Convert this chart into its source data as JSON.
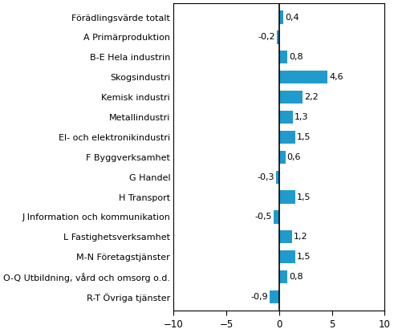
{
  "categories": [
    "Förädlingsvärde totalt",
    "A Primärproduktion",
    "B-E Hela industrin",
    "Skogsindustri",
    "Kemisk industri",
    "Metallindustri",
    "El- och elektronikindustri",
    "F Byggverksamhet",
    "G Handel",
    "H Transport",
    "J Information och kommunikation",
    "L Fastighetsverksamhet",
    "M-N Företagstjänster",
    "O-Q Utbildning, vård och omsorg o.d.",
    "R-T Övriga tjänster"
  ],
  "values": [
    0.4,
    -0.2,
    0.8,
    4.6,
    2.2,
    1.3,
    1.5,
    0.6,
    -0.3,
    1.5,
    -0.5,
    1.2,
    1.5,
    0.8,
    -0.9
  ],
  "bar_color": "#1F9BCD",
  "xlim": [
    -10,
    10
  ],
  "xticks": [
    -10,
    -5,
    0,
    5,
    10
  ],
  "bar_height": 0.65,
  "value_label_fontsize": 8,
  "category_fontsize": 8,
  "tick_fontsize": 8.5,
  "background_color": "#ffffff"
}
